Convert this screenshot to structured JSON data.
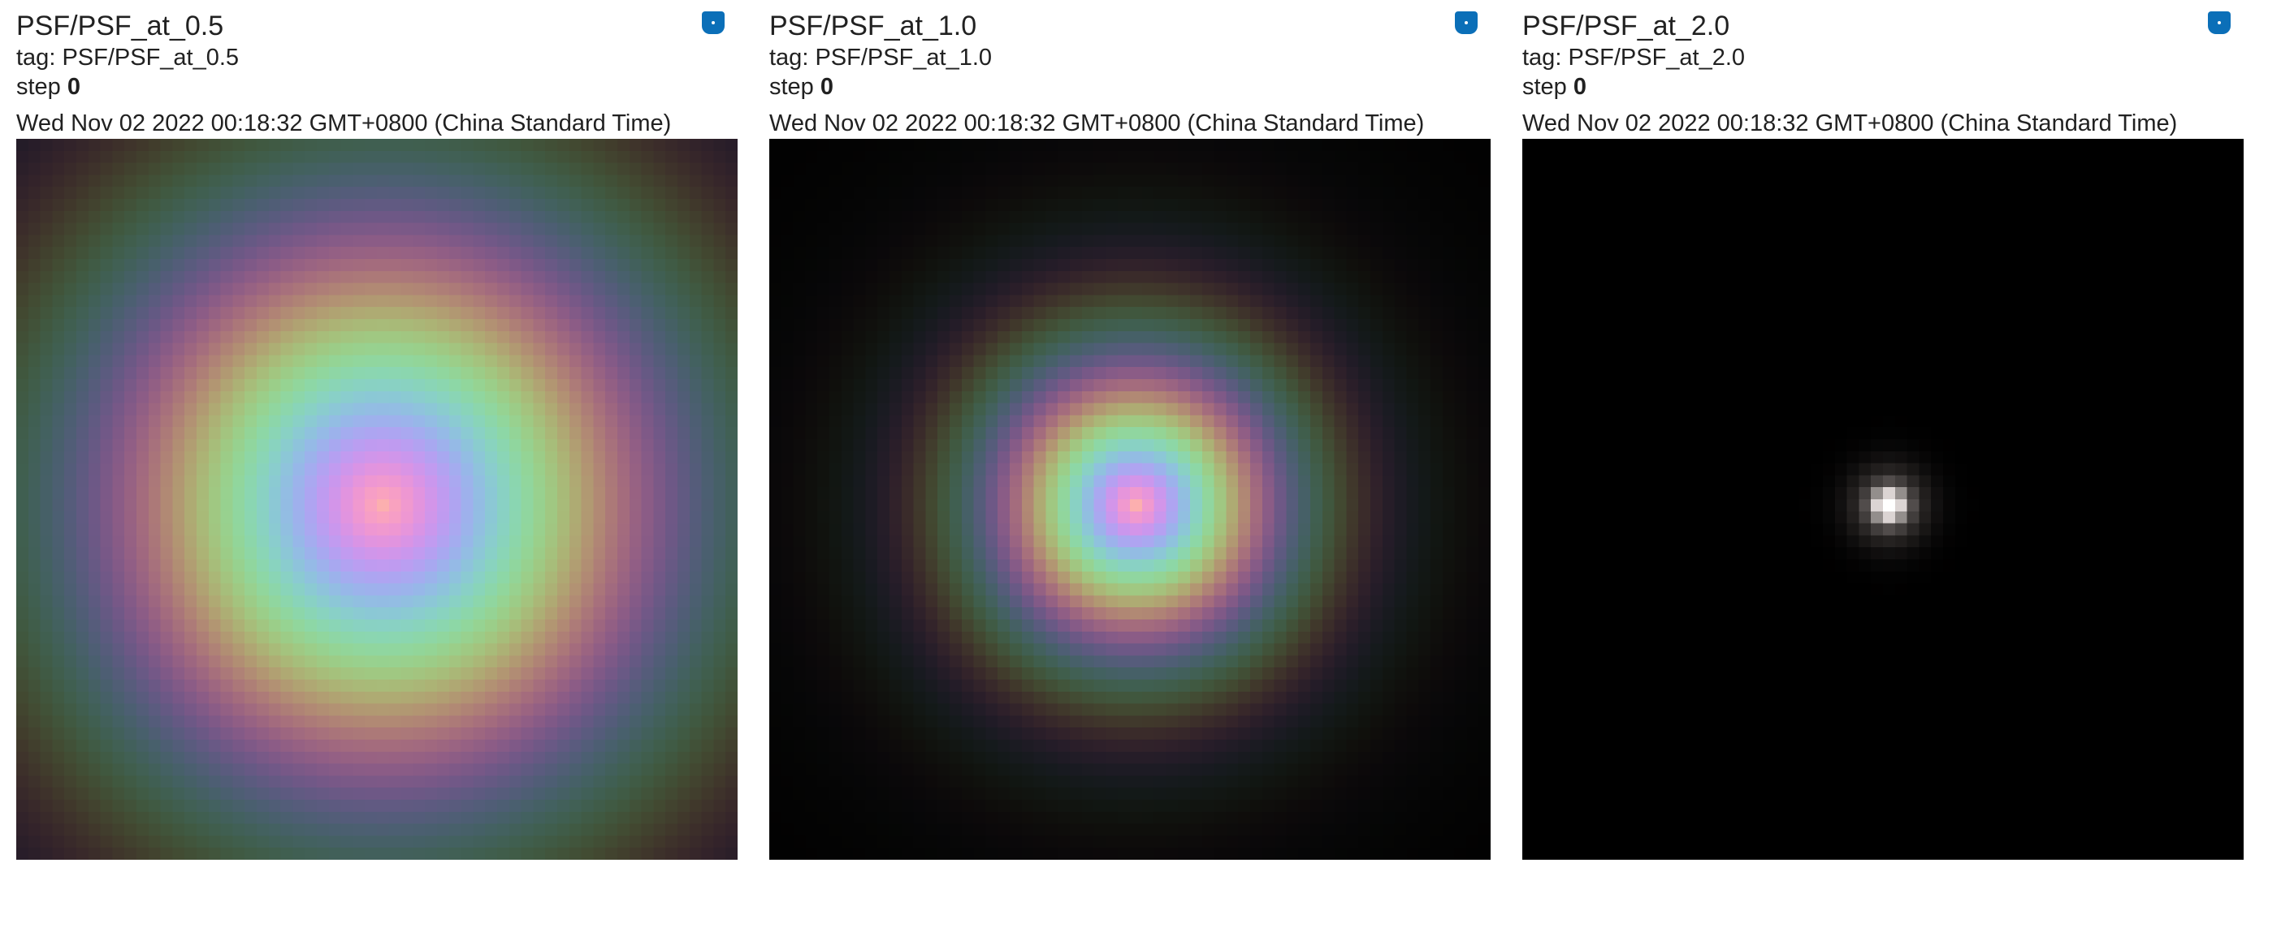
{
  "cards": [
    {
      "title": "PSF/PSF_at_0.5",
      "tag_prefix": "tag: ",
      "tag": "PSF/PSF_at_0.5",
      "step_label": "step ",
      "step": "0",
      "timestamp": "Wed Nov 02 2022 00:18:32 GMT+0800 (China Standard Time)",
      "pin_icon": "pin-icon",
      "psf": {
        "defocus": 0.5,
        "grid": 60
      }
    },
    {
      "title": "PSF/PSF_at_1.0",
      "tag_prefix": "tag: ",
      "tag": "PSF/PSF_at_1.0",
      "step_label": "step ",
      "step": "0",
      "timestamp": "Wed Nov 02 2022 00:18:32 GMT+0800 (China Standard Time)",
      "pin_icon": "pin-icon",
      "psf": {
        "defocus": 1.0,
        "grid": 60
      }
    },
    {
      "title": "PSF/PSF_at_2.0",
      "tag_prefix": "tag: ",
      "tag": "PSF/PSF_at_2.0",
      "step_label": "step ",
      "step": "0",
      "timestamp": "Wed Nov 02 2022 00:18:32 GMT+0800 (China Standard Time)",
      "pin_icon": "pin-icon",
      "psf": {
        "defocus": 2.0,
        "grid": 60
      }
    }
  ],
  "colors": {
    "pin_button": "#0b6fb8",
    "image_background": "#000000",
    "text": "#212121"
  }
}
